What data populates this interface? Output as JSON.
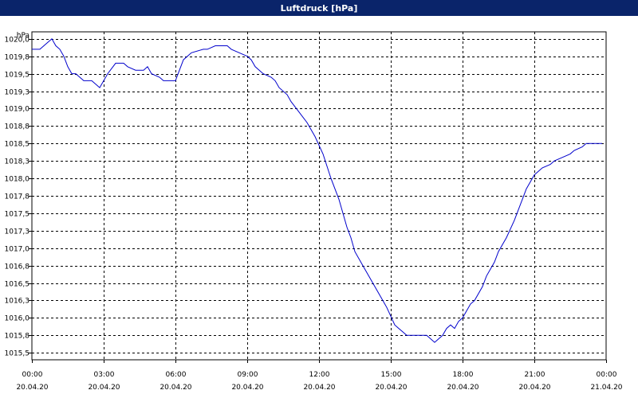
{
  "window": {
    "title": "Luftdruck [hPa]"
  },
  "colors": {
    "titlebar": "#0a246a",
    "line": "#0000cc",
    "grid": "#000000",
    "background": "#ffffff"
  },
  "chart_data": {
    "type": "line",
    "title": "Luftdruck [hPa]",
    "ylabel": "hPa",
    "xlabel": "",
    "grid": true,
    "ylim": [
      1015.4,
      1020.1
    ],
    "xlim": [
      0,
      1440
    ],
    "y_ticks": [
      "1020,0",
      "1019,8",
      "1019,5",
      "1019,3",
      "1019,0",
      "1018,8",
      "1018,5",
      "1018,3",
      "1018,0",
      "1017,8",
      "1017,5",
      "1017,3",
      "1017,0",
      "1016,8",
      "1016,5",
      "1016,3",
      "1016,0",
      "1015,8",
      "1015,5"
    ],
    "y_tick_values": [
      1020.0,
      1019.75,
      1019.5,
      1019.25,
      1019.0,
      1018.75,
      1018.5,
      1018.25,
      1018.0,
      1017.75,
      1017.5,
      1017.25,
      1017.0,
      1016.75,
      1016.5,
      1016.25,
      1016.0,
      1015.75,
      1015.5
    ],
    "x_ticks": [
      {
        "time": "00:00",
        "date": "20.04.20"
      },
      {
        "time": "03:00",
        "date": "20.04.20"
      },
      {
        "time": "06:00",
        "date": "20.04.20"
      },
      {
        "time": "09:00",
        "date": "20.04.20"
      },
      {
        "time": "12:00",
        "date": "20.04.20"
      },
      {
        "time": "15:00",
        "date": "20.04.20"
      },
      {
        "time": "18:00",
        "date": "20.04.20"
      },
      {
        "time": "21:00",
        "date": "20.04.20"
      },
      {
        "time": "00:00",
        "date": "21.04.20"
      }
    ],
    "series": [
      {
        "x": [
          "00:00",
          "00:20",
          "00:30",
          "00:50",
          "01:00",
          "01:10",
          "01:20",
          "01:30",
          "01:40",
          "01:50",
          "02:10",
          "02:20",
          "02:30",
          "02:50",
          "03:00",
          "03:10",
          "03:30",
          "03:50",
          "04:00",
          "04:20",
          "04:40",
          "04:50",
          "05:00",
          "05:20",
          "05:30",
          "06:00",
          "06:10",
          "06:20",
          "06:40",
          "07:10",
          "07:20",
          "07:40",
          "08:10",
          "08:20",
          "08:40",
          "09:00",
          "09:10",
          "09:20",
          "09:40",
          "10:00",
          "10:10",
          "10:20",
          "10:40",
          "10:50",
          "11:10",
          "11:30",
          "11:50",
          "12:10",
          "12:30",
          "12:50",
          "13:00",
          "13:10",
          "13:20",
          "13:30",
          "13:50",
          "14:10",
          "14:30",
          "14:50",
          "15:10",
          "15:20",
          "15:30",
          "15:40",
          "15:50",
          "16:00",
          "16:10",
          "16:30",
          "16:50",
          "17:10",
          "17:20",
          "17:30",
          "17:40",
          "17:50",
          "18:00",
          "18:10",
          "18:20",
          "18:30",
          "18:50",
          "19:00",
          "19:20",
          "19:30",
          "19:50",
          "20:10",
          "20:30",
          "20:40",
          "20:50",
          "21:00",
          "21:20",
          "21:40",
          "21:50",
          "22:10",
          "22:30",
          "22:40",
          "23:00",
          "23:10",
          "23:30",
          "23:50"
        ],
        "y": [
          1019.85,
          1019.85,
          1019.9,
          1020.0,
          1019.9,
          1019.85,
          1019.75,
          1019.6,
          1019.5,
          1019.5,
          1019.4,
          1019.4,
          1019.4,
          1019.3,
          1019.4,
          1019.5,
          1019.65,
          1019.65,
          1019.6,
          1019.55,
          1019.55,
          1019.6,
          1019.5,
          1019.45,
          1019.4,
          1019.4,
          1019.55,
          1019.7,
          1019.8,
          1019.85,
          1019.85,
          1019.9,
          1019.9,
          1019.85,
          1019.8,
          1019.75,
          1019.7,
          1019.6,
          1019.5,
          1019.45,
          1019.4,
          1019.3,
          1019.2,
          1019.1,
          1018.95,
          1018.8,
          1018.6,
          1018.35,
          1018.0,
          1017.7,
          1017.5,
          1017.3,
          1017.15,
          1016.95,
          1016.75,
          1016.55,
          1016.35,
          1016.15,
          1015.9,
          1015.85,
          1015.8,
          1015.75,
          1015.75,
          1015.75,
          1015.75,
          1015.75,
          1015.65,
          1015.75,
          1015.85,
          1015.9,
          1015.85,
          1015.95,
          1016.0,
          1016.1,
          1016.2,
          1016.25,
          1016.45,
          1016.6,
          1016.8,
          1016.95,
          1017.15,
          1017.4,
          1017.7,
          1017.85,
          1017.95,
          1018.05,
          1018.15,
          1018.2,
          1018.25,
          1018.3,
          1018.35,
          1018.4,
          1018.45,
          1018.5,
          1018.5,
          1018.5
        ]
      }
    ]
  }
}
